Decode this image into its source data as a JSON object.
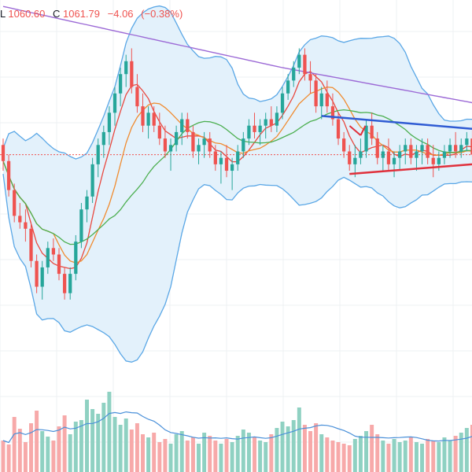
{
  "legend": {
    "low_key": "L",
    "low_value": "1060.60",
    "close_key": "C",
    "close_value": "1061.79",
    "change": "−4.06",
    "change_pct": "(−0.38%)"
  },
  "colors": {
    "up": "#26a69a",
    "down": "#ef5350",
    "up_vol": "#8fd1c2",
    "down_vol": "#f7a9a9",
    "ma_long": "#9c6ad6",
    "bb": "#5aa7e6",
    "bb_fill": "#e3f1fb",
    "ma_fast": "#e9483f",
    "ma_mid": "#f08b2f",
    "ma_slow": "#4caf50",
    "vol_ma": "#4a90d9",
    "trend_blue": "#2f5bd3",
    "trend_red": "#e0303b",
    "last_price_line": "#ef5350",
    "grid": "#eef0f3"
  },
  "chart_data": {
    "type": "candlestick",
    "title": "",
    "xlabel": "",
    "ylabel": "",
    "grid": true,
    "ohlc": [
      [
        1070,
        1072,
        1062,
        1065
      ],
      [
        1065,
        1067,
        1054,
        1056
      ],
      [
        1056,
        1058,
        1046,
        1048
      ],
      [
        1048,
        1052,
        1044,
        1046
      ],
      [
        1046,
        1050,
        1040,
        1044
      ],
      [
        1044,
        1046,
        1032,
        1034
      ],
      [
        1034,
        1036,
        1024,
        1026
      ],
      [
        1026,
        1034,
        1022,
        1032
      ],
      [
        1032,
        1040,
        1030,
        1038
      ],
      [
        1038,
        1041,
        1034,
        1036
      ],
      [
        1036,
        1038,
        1028,
        1030
      ],
      [
        1030,
        1032,
        1022,
        1024
      ],
      [
        1024,
        1032,
        1022,
        1030
      ],
      [
        1030,
        1042,
        1028,
        1040
      ],
      [
        1040,
        1052,
        1038,
        1050
      ],
      [
        1050,
        1056,
        1046,
        1054
      ],
      [
        1054,
        1066,
        1052,
        1064
      ],
      [
        1064,
        1072,
        1060,
        1070
      ],
      [
        1070,
        1076,
        1066,
        1074
      ],
      [
        1074,
        1082,
        1070,
        1080
      ],
      [
        1080,
        1088,
        1076,
        1086
      ],
      [
        1086,
        1094,
        1082,
        1092
      ],
      [
        1092,
        1098,
        1088,
        1096
      ],
      [
        1096,
        1100,
        1086,
        1088
      ],
      [
        1088,
        1092,
        1080,
        1082
      ],
      [
        1082,
        1086,
        1074,
        1076
      ],
      [
        1076,
        1082,
        1072,
        1080
      ],
      [
        1080,
        1082,
        1074,
        1076
      ],
      [
        1076,
        1080,
        1070,
        1072
      ],
      [
        1072,
        1076,
        1066,
        1068
      ],
      [
        1068,
        1072,
        1062,
        1070
      ],
      [
        1070,
        1076,
        1068,
        1074
      ],
      [
        1074,
        1080,
        1070,
        1078
      ],
      [
        1078,
        1080,
        1072,
        1074
      ],
      [
        1074,
        1076,
        1066,
        1068
      ],
      [
        1068,
        1072,
        1064,
        1070
      ],
      [
        1070,
        1074,
        1066,
        1072
      ],
      [
        1072,
        1074,
        1066,
        1068
      ],
      [
        1068,
        1070,
        1062,
        1064
      ],
      [
        1064,
        1068,
        1058,
        1066
      ],
      [
        1066,
        1070,
        1060,
        1062
      ],
      [
        1062,
        1066,
        1056,
        1064
      ],
      [
        1064,
        1070,
        1062,
        1068
      ],
      [
        1068,
        1074,
        1066,
        1072
      ],
      [
        1072,
        1078,
        1070,
        1076
      ],
      [
        1076,
        1080,
        1072,
        1074
      ],
      [
        1074,
        1078,
        1070,
        1076
      ],
      [
        1076,
        1080,
        1072,
        1078
      ],
      [
        1078,
        1082,
        1074,
        1076
      ],
      [
        1076,
        1082,
        1074,
        1080
      ],
      [
        1080,
        1088,
        1078,
        1086
      ],
      [
        1086,
        1092,
        1084,
        1090
      ],
      [
        1090,
        1096,
        1088,
        1094
      ],
      [
        1094,
        1100,
        1092,
        1098
      ],
      [
        1098,
        1100,
        1090,
        1092
      ],
      [
        1092,
        1096,
        1086,
        1090
      ],
      [
        1090,
        1092,
        1080,
        1082
      ],
      [
        1082,
        1088,
        1078,
        1086
      ],
      [
        1086,
        1090,
        1080,
        1082
      ],
      [
        1082,
        1086,
        1076,
        1078
      ],
      [
        1078,
        1080,
        1070,
        1072
      ],
      [
        1072,
        1074,
        1066,
        1068
      ],
      [
        1068,
        1070,
        1062,
        1064
      ],
      [
        1064,
        1070,
        1060,
        1066
      ],
      [
        1066,
        1072,
        1064,
        1068
      ],
      [
        1068,
        1078,
        1066,
        1076
      ],
      [
        1076,
        1080,
        1070,
        1072
      ],
      [
        1072,
        1074,
        1064,
        1066
      ],
      [
        1066,
        1070,
        1062,
        1068
      ],
      [
        1068,
        1072,
        1062,
        1064
      ],
      [
        1064,
        1068,
        1060,
        1066
      ],
      [
        1066,
        1070,
        1062,
        1068
      ],
      [
        1068,
        1072,
        1064,
        1070
      ],
      [
        1070,
        1072,
        1064,
        1066
      ],
      [
        1066,
        1070,
        1062,
        1068
      ],
      [
        1068,
        1072,
        1064,
        1070
      ],
      [
        1070,
        1072,
        1064,
        1066
      ],
      [
        1066,
        1070,
        1060,
        1064
      ],
      [
        1064,
        1068,
        1062,
        1066
      ],
      [
        1066,
        1070,
        1064,
        1068
      ],
      [
        1068,
        1072,
        1066,
        1070
      ],
      [
        1070,
        1074,
        1066,
        1068
      ],
      [
        1068,
        1072,
        1066,
        1070
      ],
      [
        1070,
        1074,
        1068,
        1072
      ],
      [
        1072,
        1076,
        1066,
        1067
      ]
    ],
    "volume": [
      40,
      35,
      70,
      55,
      38,
      62,
      78,
      52,
      45,
      40,
      58,
      72,
      48,
      64,
      66,
      92,
      80,
      74,
      88,
      102,
      70,
      60,
      68,
      54,
      62,
      48,
      44,
      50,
      38,
      42,
      36,
      48,
      52,
      40,
      44,
      36,
      50,
      46,
      40,
      36,
      42,
      38,
      46,
      54,
      50,
      44,
      40,
      38,
      48,
      56,
      64,
      58,
      66,
      82,
      60,
      52,
      62,
      48,
      44,
      40,
      38,
      36,
      34,
      42,
      46,
      52,
      60,
      48,
      40,
      36,
      42,
      38,
      40,
      44,
      38,
      36,
      42,
      40,
      38,
      44,
      40,
      46,
      50,
      56,
      60
    ],
    "y_range": [
      1010,
      1115
    ],
    "volume_range": [
      0,
      160
    ],
    "last_price": 1067
  }
}
